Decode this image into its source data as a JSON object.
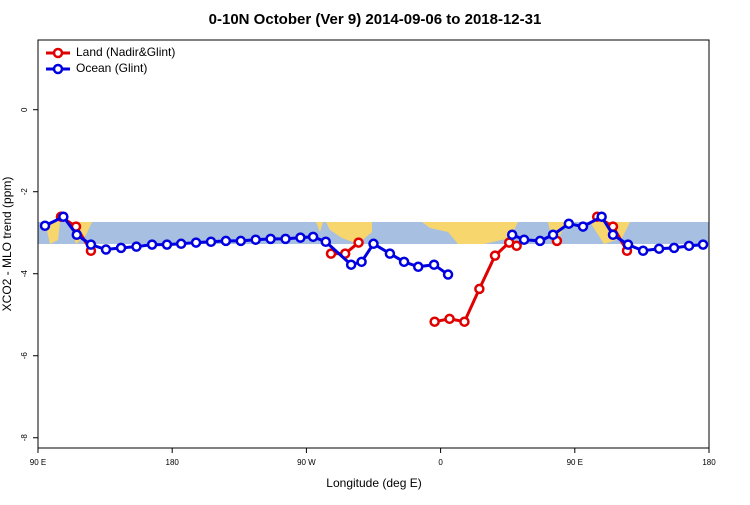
{
  "chart_data": {
    "type": "line",
    "title": "0-10N October (Ver 9)   2014-09-06 to 2018-12-31",
    "x_label": "Longitude (deg E)",
    "y_label": "XCO2 - MLO trend (ppm)",
    "xlim": [
      90,
      540
    ],
    "ylim": [
      -8.25,
      1.7
    ],
    "xticks": [
      {
        "value": 90,
        "label": "90 E"
      },
      180,
      {
        "value": 270,
        "label": "90 W"
      },
      {
        "value": 360,
        "label": "0"
      },
      {
        "value": 450,
        "label": "90 E"
      },
      {
        "value": 540,
        "label": "180"
      }
    ],
    "yticks": [
      0,
      -2,
      -4,
      -6,
      -8
    ],
    "legend": "top-left",
    "series": [
      {
        "name": "Land (Nadir&Glint)",
        "color": "#e00000",
        "x": [
          105.4,
          115.5,
          125.5,
          null,
          286.5,
          296,
          305,
          null,
          356,
          366,
          376,
          386,
          396.5,
          406,
          411,
          null,
          438,
          null,
          465,
          475.6,
          485
        ],
        "values": [
          -2.61,
          -2.85,
          -3.44,
          null,
          -3.51,
          -3.51,
          -3.24,
          null,
          -5.17,
          -5.1,
          -5.17,
          -4.37,
          -3.56,
          -3.24,
          -3.32,
          null,
          -3.2,
          null,
          -2.61,
          -2.85,
          -3.44
        ]
      },
      {
        "name": "Ocean (Glint)",
        "color": "#0000e0",
        "x": [
          94.7,
          107,
          116,
          125.5,
          135.6,
          145.7,
          156,
          166.5,
          176.5,
          186,
          196,
          206,
          216,
          226,
          236,
          246,
          256,
          266,
          274.5,
          283,
          300,
          307,
          315,
          326,
          335.5,
          345,
          355.6,
          365,
          null,
          408,
          416,
          426.7,
          435.4,
          446,
          455.5,
          468,
          475.6,
          485.7,
          495.8,
          506.5,
          516.6,
          526.6,
          536
        ],
        "values": [
          -2.83,
          -2.61,
          -3.05,
          -3.29,
          -3.41,
          -3.37,
          -3.34,
          -3.29,
          -3.29,
          -3.27,
          -3.24,
          -3.22,
          -3.2,
          -3.2,
          -3.17,
          -3.15,
          -3.15,
          -3.12,
          -3.1,
          -3.22,
          -3.78,
          -3.71,
          -3.27,
          -3.51,
          -3.71,
          -3.83,
          -3.78,
          -4.02,
          null,
          -3.05,
          -3.17,
          -3.2,
          -3.05,
          -2.78,
          -2.85,
          -2.61,
          -3.05,
          -3.29,
          -3.44,
          -3.39,
          -3.37,
          -3.32,
          -3.29
        ]
      }
    ]
  }
}
